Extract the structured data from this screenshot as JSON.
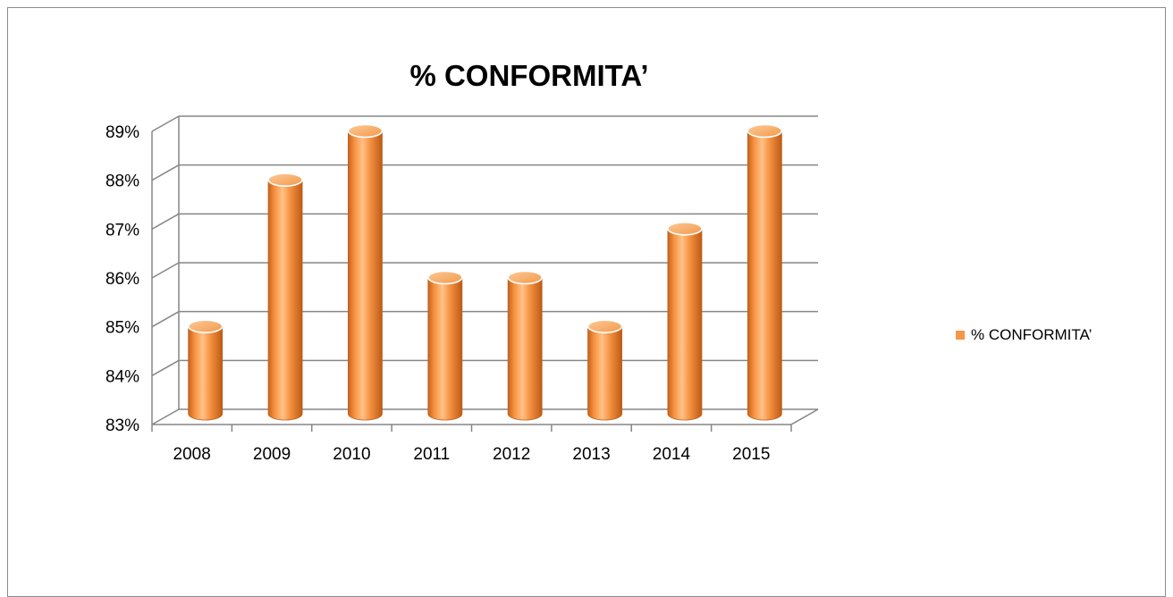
{
  "chart_data": {
    "type": "bar",
    "title": "% CONFORMITA’",
    "categories": [
      "2008",
      "2009",
      "2010",
      "2011",
      "2012",
      "2013",
      "2014",
      "2015"
    ],
    "series": [
      {
        "name": "% CONFORMITA’",
        "values": [
          85,
          88,
          89,
          86,
          86,
          85,
          87,
          89
        ],
        "color": "#F79646"
      }
    ],
    "y_tick_labels": [
      "83%",
      "84%",
      "85%",
      "86%",
      "87%",
      "88%",
      "89%"
    ],
    "ylim": [
      83,
      89
    ],
    "grid": true,
    "legend_position": "right",
    "bar_shape": "cylinder-3d"
  }
}
